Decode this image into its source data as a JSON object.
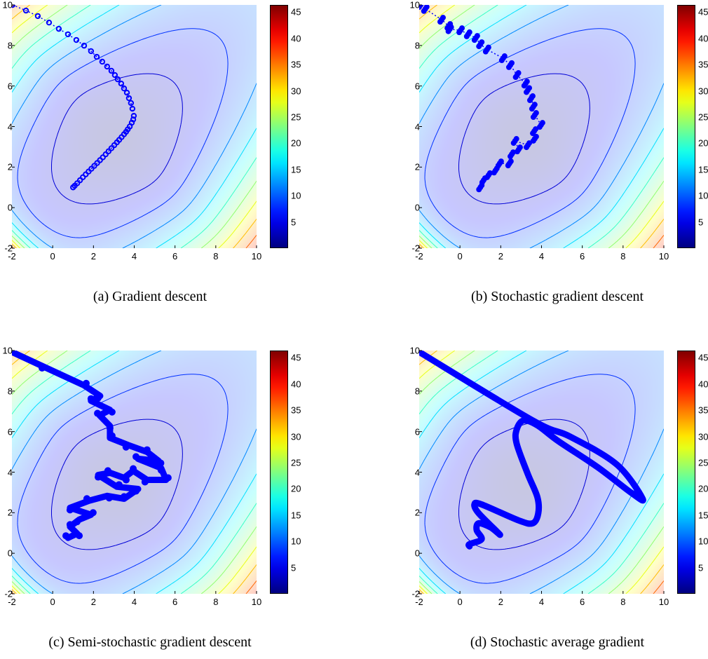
{
  "chart_data": [
    {
      "type": "contour",
      "caption": "(a) Gradient descent",
      "xlim": [
        -2,
        10
      ],
      "ylim": [
        -2,
        10
      ],
      "xticks": [
        -2,
        0,
        2,
        4,
        6,
        8,
        10
      ],
      "yticks": [
        -2,
        0,
        2,
        4,
        6,
        8,
        10
      ],
      "colorbar": {
        "colormap": "jet",
        "range": [
          0,
          46.4
        ],
        "ticks": [
          5,
          10,
          15,
          20,
          25,
          30,
          35,
          40,
          45
        ]
      },
      "contour_levels": [
        4,
        8,
        12,
        16,
        20,
        24,
        28,
        32,
        36,
        40,
        44
      ],
      "path": {
        "color": "#0000ff",
        "marker": "o",
        "points": [
          [
            -1.97,
            10
          ],
          [
            -1.31,
            9.72
          ],
          [
            -0.73,
            9.45
          ],
          [
            -0.18,
            9.13
          ],
          [
            0.3,
            8.82
          ],
          [
            0.75,
            8.55
          ],
          [
            1.16,
            8.27
          ],
          [
            1.54,
            7.99
          ],
          [
            1.88,
            7.72
          ],
          [
            2.16,
            7.44
          ],
          [
            2.43,
            7.2
          ],
          [
            2.67,
            6.96
          ],
          [
            2.88,
            6.75
          ],
          [
            3.05,
            6.54
          ],
          [
            3.19,
            6.33
          ],
          [
            3.36,
            6.12
          ],
          [
            3.5,
            5.88
          ],
          [
            3.64,
            5.67
          ],
          [
            3.74,
            5.4
          ],
          [
            3.84,
            5.16
          ],
          [
            3.91,
            4.88
          ],
          [
            3.98,
            4.53
          ],
          [
            3.95,
            4.35
          ],
          [
            3.88,
            4.19
          ],
          [
            3.78,
            4.0
          ],
          [
            3.68,
            3.86
          ],
          [
            3.6,
            3.74
          ],
          [
            3.5,
            3.62
          ],
          [
            3.38,
            3.48
          ],
          [
            3.26,
            3.34
          ],
          [
            3.15,
            3.22
          ],
          [
            3.02,
            3.08
          ],
          [
            2.88,
            2.93
          ],
          [
            2.74,
            2.78
          ],
          [
            2.6,
            2.63
          ],
          [
            2.46,
            2.48
          ],
          [
            2.32,
            2.34
          ],
          [
            2.18,
            2.2
          ],
          [
            2.04,
            2.06
          ],
          [
            1.9,
            1.92
          ],
          [
            1.76,
            1.78
          ],
          [
            1.62,
            1.64
          ],
          [
            1.48,
            1.5
          ],
          [
            1.34,
            1.35
          ],
          [
            1.2,
            1.2
          ],
          [
            1.08,
            1.08
          ],
          [
            1.0,
            1.0
          ]
        ]
      }
    },
    {
      "type": "contour",
      "caption": "(b) Stochastic gradient descent",
      "xlim": [
        -2,
        10
      ],
      "ylim": [
        -2,
        10
      ],
      "xticks": [
        -2,
        0,
        2,
        4,
        6,
        8,
        10
      ],
      "yticks": [
        -2,
        0,
        2,
        4,
        6,
        8,
        10
      ],
      "colorbar": {
        "colormap": "jet",
        "range": [
          0,
          46.4
        ],
        "ticks": [
          5,
          10,
          15,
          20,
          25,
          30,
          35,
          40,
          45
        ]
      },
      "contour_levels": [
        4,
        8,
        12,
        16,
        20,
        24,
        28,
        32,
        36,
        40,
        44
      ],
      "path": {
        "color": "#0000ff",
        "marker": "blob",
        "points": [
          [
            -1.93,
            10
          ],
          [
            -1.7,
            9.8
          ],
          [
            -0.9,
            9.27
          ],
          [
            -0.55,
            8.96
          ],
          [
            -0.5,
            8.8
          ],
          [
            0.03,
            8.75
          ],
          [
            0.4,
            8.55
          ],
          [
            0.78,
            8.37
          ],
          [
            1.0,
            8.06
          ],
          [
            1.33,
            7.8
          ],
          [
            2.12,
            7.37
          ],
          [
            2.47,
            7.03
          ],
          [
            2.8,
            6.54
          ],
          [
            3.22,
            6.12
          ],
          [
            3.33,
            5.8
          ],
          [
            3.5,
            5.4
          ],
          [
            3.6,
            4.98
          ],
          [
            3.67,
            4.57
          ],
          [
            3.98,
            4.08
          ],
          [
            3.64,
            3.77
          ],
          [
            3.67,
            3.4
          ],
          [
            3.33,
            3.08
          ],
          [
            2.7,
            3.29
          ],
          [
            2.88,
            2.87
          ],
          [
            2.54,
            2.63
          ],
          [
            2.43,
            2.18
          ],
          [
            1.95,
            2.18
          ],
          [
            1.74,
            1.83
          ],
          [
            1.4,
            1.6
          ],
          [
            1.16,
            1.35
          ],
          [
            1.0,
            1.0
          ]
        ]
      }
    },
    {
      "type": "contour",
      "caption": "(c) Semi-stochastic gradient descent",
      "xlim": [
        -2,
        10
      ],
      "ylim": [
        -2,
        10
      ],
      "xticks": [
        -2,
        0,
        2,
        4,
        6,
        8,
        10
      ],
      "yticks": [
        -2,
        0,
        2,
        4,
        6,
        8,
        10
      ],
      "colorbar": {
        "colormap": "jet",
        "range": [
          0,
          46.4
        ],
        "ticks": [
          5,
          10,
          15,
          20,
          25,
          30,
          35,
          40,
          45
        ]
      },
      "contour_levels": [
        4,
        8,
        12,
        16,
        20,
        24,
        28,
        32,
        36,
        40,
        44
      ],
      "path": {
        "color": "#0000ff",
        "marker": "thick",
        "points": [
          [
            -2,
            9.93
          ],
          [
            -0.52,
            9.24
          ],
          [
            1.54,
            8.28
          ],
          [
            2.33,
            7.76
          ],
          [
            1.88,
            7.52
          ],
          [
            2.81,
            7.07
          ],
          [
            2.3,
            6.8
          ],
          [
            2.81,
            6.28
          ],
          [
            2.81,
            5.69
          ],
          [
            3.7,
            5.34
          ],
          [
            4.63,
            5.0
          ],
          [
            5.2,
            4.55
          ],
          [
            4.19,
            4.66
          ],
          [
            5.32,
            4.2
          ],
          [
            5.56,
            3.62
          ],
          [
            4.63,
            3.62
          ],
          [
            3.95,
            4.07
          ],
          [
            3.5,
            3.72
          ],
          [
            2.81,
            3.97
          ],
          [
            2.23,
            3.86
          ],
          [
            3.15,
            3.28
          ],
          [
            4.19,
            3.17
          ],
          [
            3.5,
            2.69
          ],
          [
            2.67,
            2.83
          ],
          [
            1.78,
            2.59
          ],
          [
            0.85,
            2.24
          ],
          [
            1.88,
            1.9
          ],
          [
            1.3,
            1.66
          ],
          [
            0.85,
            1.31
          ],
          [
            1.2,
            0.97
          ],
          [
            0.75,
            0.76
          ]
        ]
      }
    },
    {
      "type": "contour",
      "caption": "(d) Stochastic average gradient",
      "xlim": [
        -2,
        10
      ],
      "ylim": [
        -2,
        10
      ],
      "xticks": [
        -2,
        0,
        2,
        4,
        6,
        8,
        10
      ],
      "yticks": [
        -2,
        0,
        2,
        4,
        6,
        8,
        10
      ],
      "colorbar": {
        "colormap": "jet",
        "range": [
          0,
          46.4
        ],
        "ticks": [
          5,
          10,
          15,
          20,
          25,
          30,
          35,
          40,
          45
        ]
      },
      "contour_levels": [
        4,
        8,
        12,
        16,
        20,
        24,
        28,
        32,
        36,
        40,
        44
      ],
      "path": {
        "color": "#0000ff",
        "marker": "smooth",
        "points": [
          [
            -2,
            9.93
          ],
          [
            3.57,
            6.55
          ],
          [
            5.39,
            5.76
          ],
          [
            7.69,
            4.38
          ],
          [
            8.96,
            2.69
          ],
          [
            8.38,
            3.0
          ],
          [
            6.76,
            4.24
          ],
          [
            4.84,
            5.52
          ],
          [
            3.8,
            6.31
          ],
          [
            3.12,
            6.55
          ],
          [
            2.78,
            6.1
          ],
          [
            2.78,
            5.41
          ],
          [
            3.33,
            3.9
          ],
          [
            3.8,
            2.76
          ],
          [
            3.84,
            1.97
          ],
          [
            3.57,
            1.48
          ],
          [
            2.88,
            1.62
          ],
          [
            1.06,
            2.41
          ],
          [
            0.71,
            2.41
          ],
          [
            0.92,
            1.97
          ],
          [
            1.95,
            0.93
          ],
          [
            1.5,
            1.28
          ],
          [
            0.92,
            1.48
          ],
          [
            0.82,
            1.14
          ],
          [
            1.06,
            0.69
          ],
          [
            0.47,
            0.45
          ],
          [
            0.47,
            0.34
          ]
        ]
      }
    }
  ]
}
